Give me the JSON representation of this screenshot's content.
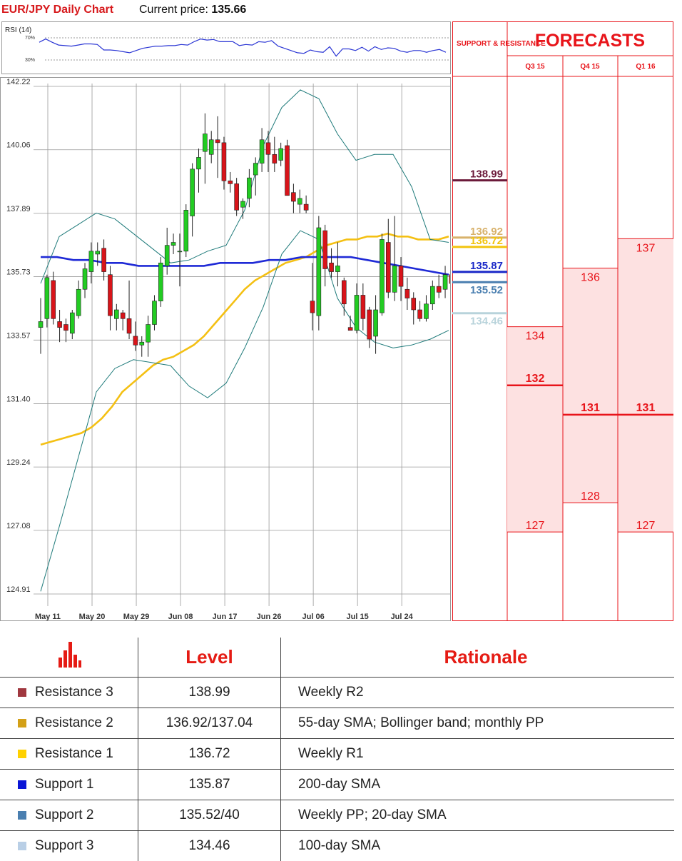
{
  "header": {
    "title": "EUR/JPY Daily Chart",
    "price_label": "Current price:",
    "price_value": "135.66"
  },
  "rsi": {
    "label": "RSI (14)",
    "levels": [
      "70%",
      "30%"
    ],
    "values": [
      62,
      68,
      62,
      57,
      56,
      55,
      57,
      59,
      59,
      58,
      48,
      48,
      47,
      45,
      43,
      47,
      51,
      53,
      55,
      55,
      56,
      56,
      58,
      57,
      63,
      68,
      66,
      67,
      63,
      63,
      63,
      56,
      58,
      57,
      63,
      62,
      65,
      55,
      51,
      47,
      43,
      42,
      48,
      45,
      44,
      54,
      37,
      50,
      50,
      47,
      53,
      46,
      54,
      49,
      52,
      51,
      46,
      44,
      47,
      47,
      44,
      47,
      49,
      44
    ]
  },
  "chart_data": {
    "type": "candlestick",
    "title": "EUR/JPY Daily Chart",
    "y_ticks": [
      "142.22",
      "140.06",
      "137.89",
      "135.73",
      "133.57",
      "131.40",
      "129.24",
      "127.08",
      "124.91"
    ],
    "x_ticks": [
      "May 11",
      "May 20",
      "May 29",
      "Jun 08",
      "Jun 17",
      "Jun 26",
      "Jul 06",
      "Jul 15",
      "Jul 24"
    ],
    "ylim": [
      124.91,
      142.22
    ],
    "x_tick_index": [
      0,
      7,
      14,
      21,
      28,
      35,
      42,
      49,
      56
    ],
    "grid": true,
    "candles": [
      [
        134.0,
        135.0,
        133.1,
        134.2
      ],
      [
        134.3,
        135.8,
        134.0,
        135.7
      ],
      [
        135.6,
        135.9,
        134.1,
        134.3
      ],
      [
        134.2,
        134.6,
        133.5,
        134.0
      ],
      [
        134.1,
        134.3,
        133.5,
        133.9
      ],
      [
        133.8,
        134.6,
        133.6,
        134.5
      ],
      [
        134.4,
        135.6,
        134.3,
        135.3
      ],
      [
        135.3,
        136.2,
        135.0,
        136.0
      ],
      [
        135.9,
        136.9,
        135.5,
        136.6
      ],
      [
        136.5,
        136.9,
        136.1,
        136.6
      ],
      [
        136.7,
        137.0,
        135.6,
        135.9
      ],
      [
        135.8,
        136.1,
        133.9,
        134.4
      ],
      [
        134.3,
        134.8,
        133.9,
        134.6
      ],
      [
        134.5,
        134.6,
        133.9,
        134.3
      ],
      [
        134.3,
        135.6,
        133.6,
        133.8
      ],
      [
        133.7,
        134.2,
        133.2,
        133.4
      ],
      [
        133.4,
        133.7,
        133.0,
        133.5
      ],
      [
        133.5,
        134.4,
        133.0,
        134.1
      ],
      [
        134.1,
        135.1,
        133.9,
        134.9
      ],
      [
        134.9,
        136.4,
        134.7,
        136.2
      ],
      [
        136.1,
        137.4,
        135.8,
        136.8
      ],
      [
        136.8,
        137.2,
        136.5,
        136.9
      ],
      [
        136.6,
        137.2,
        135.4,
        136.6
      ],
      [
        136.6,
        138.2,
        136.4,
        138.0
      ],
      [
        137.8,
        139.6,
        137.1,
        139.4
      ],
      [
        139.4,
        140.1,
        138.6,
        139.8
      ],
      [
        140.0,
        141.3,
        138.9,
        140.6
      ],
      [
        139.9,
        140.7,
        139.6,
        140.4
      ],
      [
        140.4,
        141.2,
        139.1,
        140.3
      ],
      [
        140.3,
        140.5,
        138.7,
        139.0
      ],
      [
        139.0,
        139.3,
        138.6,
        138.9
      ],
      [
        138.9,
        139.1,
        137.8,
        138.0
      ],
      [
        138.1,
        138.4,
        137.7,
        138.3
      ],
      [
        138.4,
        139.4,
        138.1,
        139.1
      ],
      [
        139.2,
        139.8,
        138.5,
        139.6
      ],
      [
        139.6,
        140.8,
        139.3,
        140.4
      ],
      [
        140.3,
        140.7,
        139.3,
        139.9
      ],
      [
        139.9,
        140.5,
        139.3,
        139.6
      ],
      [
        139.7,
        140.3,
        139.5,
        140.1
      ],
      [
        140.2,
        140.4,
        138.6,
        138.5
      ],
      [
        138.6,
        138.9,
        137.9,
        138.3
      ],
      [
        138.2,
        138.7,
        137.9,
        138.4
      ],
      [
        138.2,
        138.5,
        137.9,
        138.0
      ],
      [
        134.9,
        136.2,
        133.9,
        134.5
      ],
      [
        134.4,
        137.8,
        133.9,
        137.4
      ],
      [
        137.3,
        137.5,
        135.4,
        136.0
      ],
      [
        136.2,
        136.7,
        135.7,
        135.9
      ],
      [
        135.9,
        136.9,
        135.4,
        136.1
      ],
      [
        135.6,
        135.7,
        134.4,
        134.8
      ],
      [
        134.0,
        134.4,
        133.9,
        133.9
      ],
      [
        133.9,
        135.5,
        133.8,
        135.1
      ],
      [
        135.1,
        135.5,
        133.9,
        134.3
      ],
      [
        134.6,
        134.7,
        133.3,
        133.6
      ],
      [
        133.7,
        135.1,
        133.1,
        134.6
      ],
      [
        134.5,
        137.2,
        134.4,
        137.0
      ],
      [
        136.9,
        137.7,
        135.0,
        135.2
      ],
      [
        135.2,
        137.8,
        134.9,
        136.1
      ],
      [
        136.1,
        136.4,
        134.9,
        135.4
      ],
      [
        135.3,
        135.7,
        134.6,
        135.0
      ],
      [
        135.0,
        135.2,
        134.1,
        134.6
      ],
      [
        134.6,
        134.9,
        134.2,
        134.3
      ],
      [
        134.3,
        135.1,
        134.2,
        134.8
      ],
      [
        134.8,
        135.6,
        134.6,
        135.4
      ],
      [
        135.4,
        135.8,
        135.0,
        135.2
      ],
      [
        135.3,
        136.1,
        135.0,
        135.8
      ],
      [
        135.8,
        136.2,
        135.3,
        135.5
      ]
    ],
    "series": [
      {
        "values": [
          130.0,
          130.1,
          130.2,
          130.3,
          130.4,
          130.6,
          130.9,
          131.3,
          131.8,
          132.1,
          132.4,
          132.7,
          132.9,
          133.0,
          133.2,
          133.4,
          133.7,
          134.1,
          134.5,
          134.9,
          135.3,
          135.6,
          135.8,
          136.0,
          136.2,
          136.3,
          136.4,
          136.6,
          136.8,
          136.9,
          137.0,
          137.0,
          137.1,
          137.1,
          137.2,
          137.1,
          137.1,
          137.0,
          137.0,
          137.0,
          137.1
        ]
      },
      {
        "values": [
          136.4,
          136.4,
          136.3,
          136.3,
          136.2,
          136.2,
          136.1,
          136.1,
          136.1,
          136.1,
          136.1,
          136.2,
          136.2,
          136.2,
          136.3,
          136.3,
          136.4,
          136.4,
          136.4,
          136.4,
          136.3,
          136.2,
          136.1,
          136.0,
          135.9,
          135.8
        ]
      },
      {
        "values": [
          135.5,
          137.1,
          137.5,
          137.9,
          137.7,
          137.2,
          136.7,
          136.2,
          136.3,
          136.6,
          136.8,
          138.0,
          140.2,
          141.5,
          142.1,
          141.8,
          140.6,
          139.7,
          139.9,
          139.9,
          138.8,
          137.0,
          136.9
        ]
      },
      {
        "values": [
          125.0,
          127.2,
          129.5,
          131.8,
          132.6,
          132.9,
          132.8,
          132.7,
          132.0,
          131.6,
          132.1,
          133.3,
          134.7,
          136.5,
          137.3,
          137.0,
          135.0,
          134.0,
          133.5,
          133.3,
          133.4,
          133.6,
          133.9
        ]
      }
    ]
  },
  "forecast": {
    "header_left": "SUPPORT & RESISTANCE",
    "title": "FORECASTS",
    "periods": [
      "Q3 15",
      "Q4 15",
      "Q1 16"
    ],
    "sr_levels": [
      {
        "label": "138.99",
        "value": 138.99,
        "color": "#6b1a3a"
      },
      {
        "label": "136.92",
        "value": 137.04,
        "color": "#d8b26c"
      },
      {
        "label": "136.72",
        "value": 136.72,
        "color": "#f2c40d"
      },
      {
        "label": "135.87",
        "value": 135.87,
        "color": "#1a28c8"
      },
      {
        "label": "135.52",
        "value": 135.52,
        "color": "#4a7fb0"
      },
      {
        "label": "134.46",
        "value": 134.46,
        "color": "#b8d3db"
      }
    ],
    "columns": [
      {
        "high": "134",
        "median": "132",
        "low": "127",
        "high_v": 134.0,
        "median_v": 132.0,
        "low_v": 127.0
      },
      {
        "high": "136",
        "median": "131",
        "low": "128",
        "high_v": 136.0,
        "median_v": 131.0,
        "low_v": 128.0
      },
      {
        "high": "137",
        "median": "131",
        "low": "127",
        "high_v": 137.0,
        "median_v": 131.0,
        "low_v": 127.0
      }
    ]
  },
  "levels_table": {
    "header_level": "Level",
    "header_rationale": "Rationale",
    "rows": [
      {
        "name": "Resistance 3",
        "level": "138.99",
        "rationale": "Weekly R2",
        "color": "#a0373f"
      },
      {
        "name": "Resistance 2",
        "level": "136.92/137.04",
        "rationale": "55-day SMA; Bollinger band; monthly PP",
        "color": "#d3a017"
      },
      {
        "name": "Resistance 1",
        "level": "136.72",
        "rationale": "Weekly R1",
        "color": "#ffd100"
      },
      {
        "name": "Support 1",
        "level": "135.87",
        "rationale": "200-day SMA",
        "color": "#0a15d6"
      },
      {
        "name": "Support 2",
        "level": "135.52/40",
        "rationale": "Weekly PP; 20-day SMA",
        "color": "#4a7fb0"
      },
      {
        "name": "Support 3",
        "level": "134.46",
        "rationale": "100-day SMA",
        "color": "#b9cfe6"
      }
    ]
  }
}
